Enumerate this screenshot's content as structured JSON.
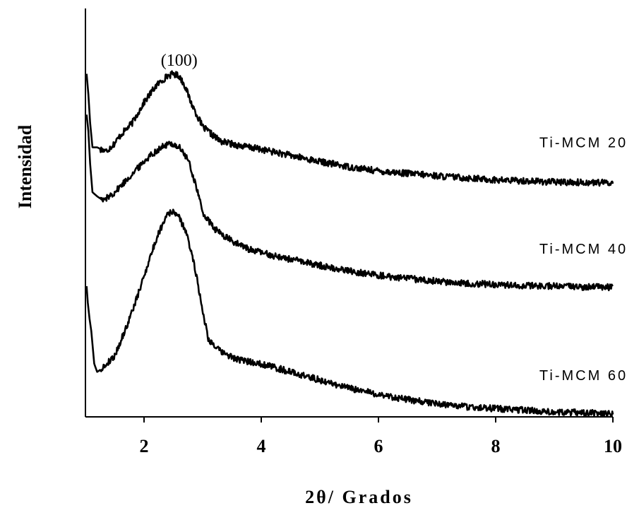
{
  "chart_data": {
    "type": "line",
    "title": "",
    "xlabel": "2θ/ Grados",
    "ylabel": "Intensidad",
    "xlim": [
      1,
      10
    ],
    "ylim": [
      0,
      1
    ],
    "xticks": [
      2,
      4,
      6,
      8,
      10
    ],
    "yticks": [],
    "grid": false,
    "legend": "none",
    "line_color": "#000000",
    "annotations": [
      {
        "text": "(100)",
        "x": 2.6,
        "y": 0.86
      }
    ],
    "series": [
      {
        "name": "Ti-MCM 20",
        "x": [
          1.02,
          1.05,
          1.08,
          1.12,
          1.2,
          1.35,
          1.5,
          1.6,
          1.8,
          2.0,
          2.2,
          2.4,
          2.5,
          2.6,
          2.7,
          2.8,
          3.0,
          3.3,
          3.6,
          4.0,
          4.5,
          5.0,
          5.5,
          6.0,
          6.5,
          7.0,
          7.5,
          8.0,
          8.5,
          9.0,
          9.5,
          10.0
        ],
        "y": [
          0.84,
          0.79,
          0.72,
          0.66,
          0.66,
          0.65,
          0.67,
          0.69,
          0.72,
          0.77,
          0.81,
          0.835,
          0.84,
          0.835,
          0.81,
          0.77,
          0.71,
          0.675,
          0.665,
          0.655,
          0.64,
          0.625,
          0.612,
          0.602,
          0.596,
          0.59,
          0.585,
          0.58,
          0.578,
          0.575,
          0.574,
          0.573
        ]
      },
      {
        "name": "Ti-MCM 40",
        "x": [
          1.02,
          1.05,
          1.08,
          1.12,
          1.2,
          1.3,
          1.5,
          1.7,
          1.9,
          2.1,
          2.3,
          2.45,
          2.6,
          2.75,
          2.9,
          3.0,
          3.2,
          3.5,
          3.8,
          4.2,
          4.7,
          5.2,
          5.7,
          6.2,
          6.7,
          7.2,
          7.7,
          8.2,
          8.7,
          9.2,
          9.7,
          10.0
        ],
        "y": [
          0.74,
          0.7,
          0.62,
          0.55,
          0.54,
          0.53,
          0.55,
          0.58,
          0.61,
          0.64,
          0.66,
          0.67,
          0.66,
          0.63,
          0.56,
          0.5,
          0.46,
          0.43,
          0.41,
          0.395,
          0.38,
          0.365,
          0.353,
          0.343,
          0.336,
          0.33,
          0.326,
          0.323,
          0.321,
          0.319,
          0.318,
          0.317
        ]
      },
      {
        "name": "Ti-MCM 60",
        "x": [
          1.02,
          1.04,
          1.07,
          1.1,
          1.15,
          1.2,
          1.3,
          1.5,
          1.7,
          1.9,
          2.1,
          2.25,
          2.4,
          2.55,
          2.7,
          2.85,
          3.0,
          3.1,
          3.3,
          3.6,
          4.0,
          4.5,
          5.0,
          5.5,
          6.0,
          6.5,
          7.0,
          7.5,
          8.0,
          8.5,
          9.0,
          9.5,
          10.0
        ],
        "y": [
          0.32,
          0.28,
          0.24,
          0.21,
          0.13,
          0.11,
          0.12,
          0.15,
          0.22,
          0.3,
          0.39,
          0.45,
          0.5,
          0.5,
          0.46,
          0.38,
          0.26,
          0.19,
          0.16,
          0.14,
          0.13,
          0.11,
          0.09,
          0.07,
          0.055,
          0.042,
          0.032,
          0.025,
          0.02,
          0.016,
          0.012,
          0.01,
          0.007
        ]
      }
    ]
  }
}
